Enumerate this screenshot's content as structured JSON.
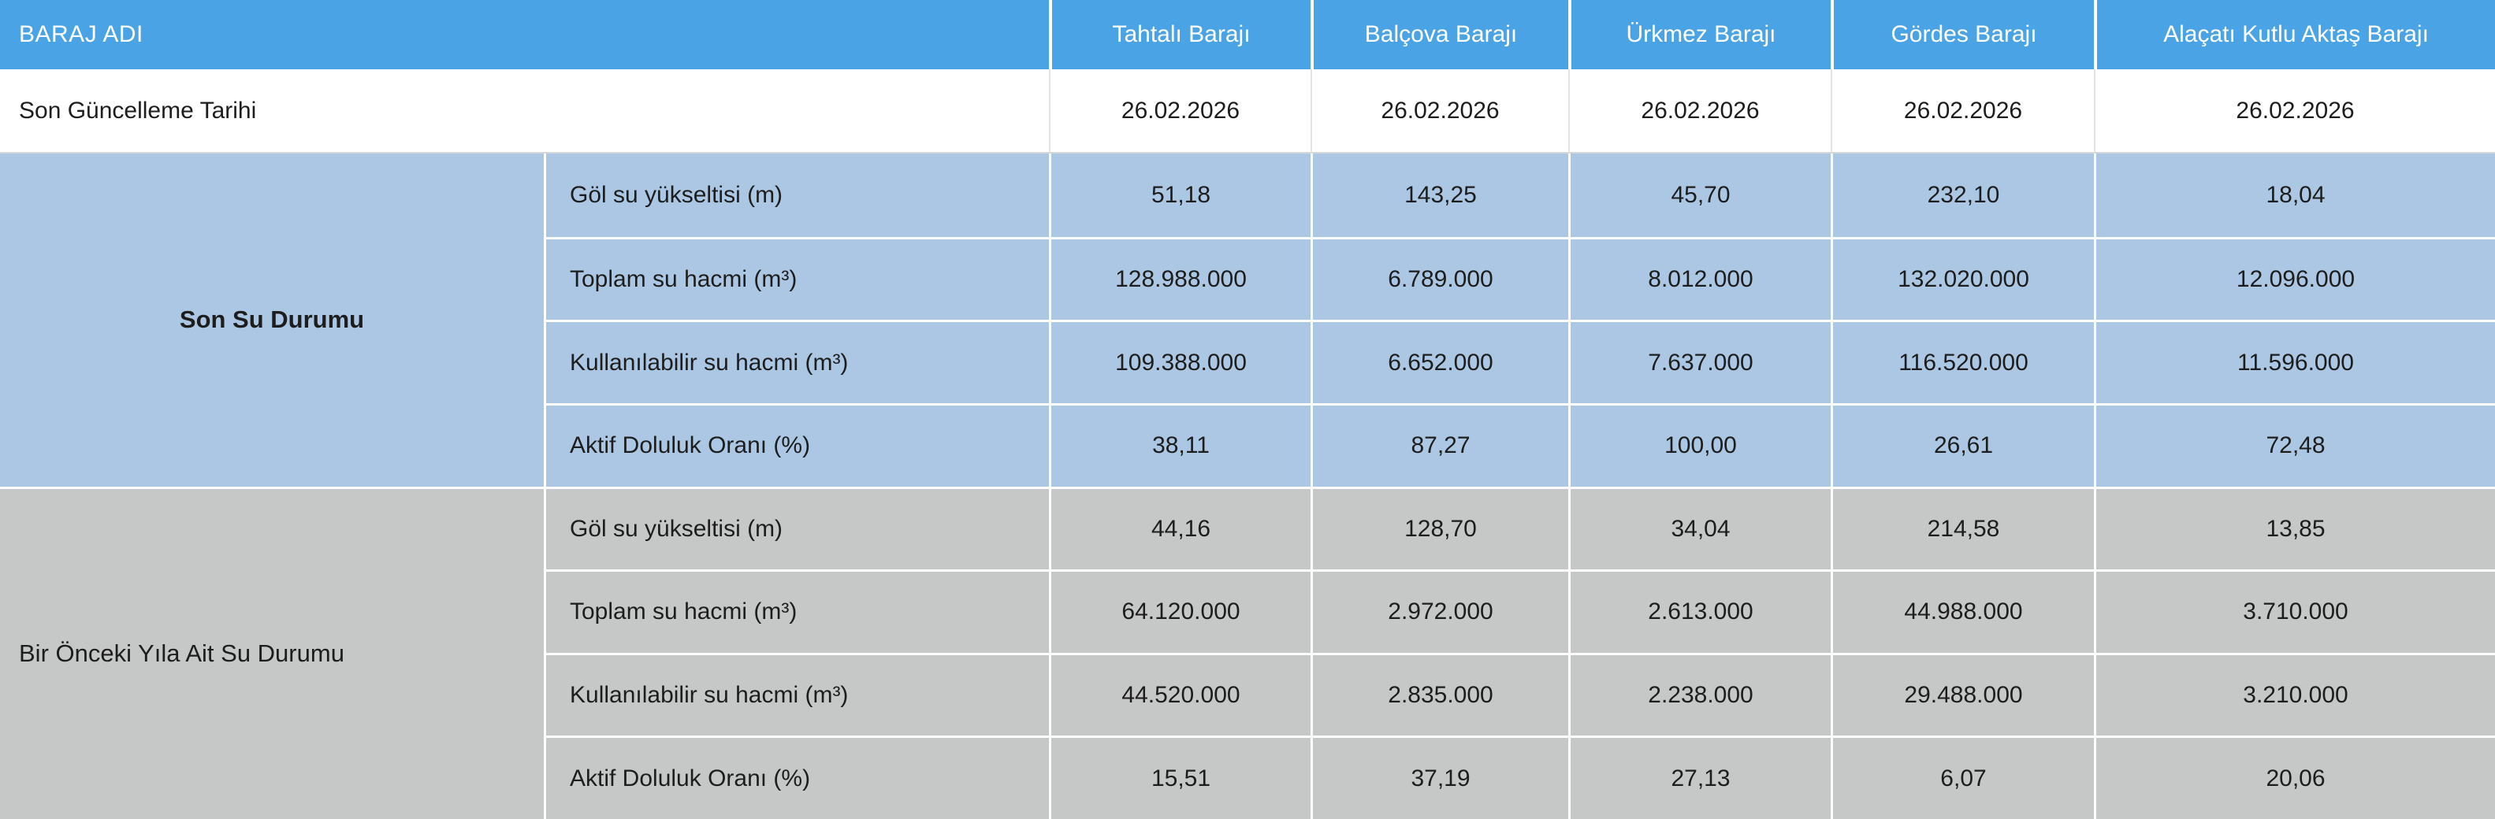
{
  "table": {
    "corner_label": "BARAJ ADI",
    "columns": [
      "Tahtalı Barajı",
      "Balçova Barajı",
      "Ürkmez Barajı",
      "Gördes Barajı",
      "Alaçatı Kutlu Aktaş Barajı"
    ],
    "update_row": {
      "label": "Son Güncelleme Tarihi",
      "values": [
        "26.02.2026",
        "26.02.2026",
        "26.02.2026",
        "26.02.2026",
        "26.02.2026"
      ]
    },
    "sections": [
      {
        "title": "Son Su Durumu",
        "rows": [
          {
            "label": "Göl su yükseltisi (m)",
            "values": [
              "51,18",
              "143,25",
              "45,70",
              "232,10",
              "18,04"
            ]
          },
          {
            "label": "Toplam su hacmi (m³)",
            "values": [
              "128.988.000",
              "6.789.000",
              "8.012.000",
              "132.020.000",
              "12.096.000"
            ]
          },
          {
            "label": "Kullanılabilir su hacmi (m³)",
            "values": [
              "109.388.000",
              "6.652.000",
              "7.637.000",
              "116.520.000",
              "11.596.000"
            ]
          },
          {
            "label": "Aktif Doluluk Oranı (%)",
            "values": [
              "38,11",
              "87,27",
              "100,00",
              "26,61",
              "72,48"
            ]
          }
        ]
      },
      {
        "title": "Bir Önceki Yıla Ait Su Durumu",
        "rows": [
          {
            "label": "Göl su yükseltisi (m)",
            "values": [
              "44,16",
              "128,70",
              "34,04",
              "214,58",
              "13,85"
            ]
          },
          {
            "label": "Toplam su hacmi (m³)",
            "values": [
              "64.120.000",
              "2.972.000",
              "2.613.000",
              "44.988.000",
              "3.710.000"
            ]
          },
          {
            "label": "Kullanılabilir su hacmi (m³)",
            "values": [
              "44.520.000",
              "2.835.000",
              "2.238.000",
              "29.488.000",
              "3.210.000"
            ]
          },
          {
            "label": "Aktif Doluluk Oranı (%)",
            "values": [
              "15,51",
              "37,19",
              "27,13",
              "6,07",
              "20,06"
            ]
          }
        ]
      }
    ],
    "colors": {
      "header_bg": "#4aa3e4",
      "header_text": "#ffffff",
      "current_section_bg": "#abc7e3",
      "previous_section_bg": "#c6c7c7",
      "body_text": "#1d1d1d"
    }
  }
}
